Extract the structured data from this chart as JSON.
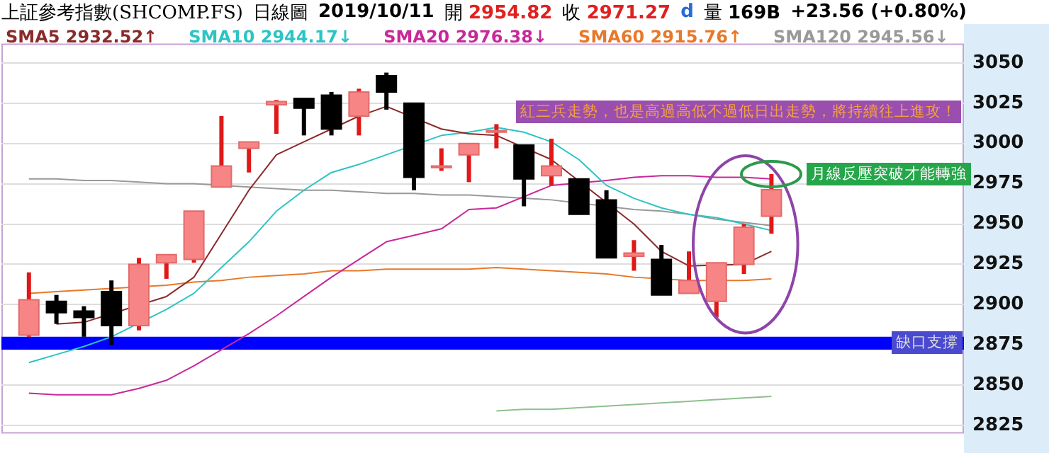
{
  "chart_data": {
    "type": "candlestick",
    "title": "上証參考指數(SHCOMP.FS)",
    "subtitle": "日線圖",
    "annotations": [
      "2019/10/11",
      "開 2954.82",
      "收 2971.27",
      "d",
      "量 169B",
      "+23.56 (+0.80%)",
      "紅三兵走勢，也是高過高低不過低日出走勢，將持續往上進攻！",
      "月線反壓突破才能轉強"
    ],
    "categories": [
      null,
      null,
      null,
      null,
      null,
      null,
      null,
      null,
      null,
      null,
      null,
      null,
      null,
      null,
      null,
      null,
      null,
      null,
      null,
      null,
      null,
      null,
      null,
      null,
      null,
      null,
      null,
      null
    ],
    "ohlc": [
      [
        2881,
        2920,
        2880,
        2903
      ],
      [
        2902,
        2906,
        2888,
        2895
      ],
      [
        2896,
        2899,
        2880,
        2892
      ],
      [
        2908,
        2915,
        2875,
        2887
      ],
      [
        2887,
        2929,
        2884,
        2925
      ],
      [
        2926,
        2931,
        2916,
        2931
      ],
      [
        2928,
        2958,
        2926,
        2958
      ],
      [
        2973,
        3017,
        2973,
        2986
      ],
      [
        2997,
        3001,
        2982,
        3001
      ],
      [
        3024,
        3027,
        3006,
        3026
      ],
      [
        3028,
        3028,
        3005,
        3022
      ],
      [
        3030,
        3032,
        3005,
        3009
      ],
      [
        3017,
        3034,
        3005,
        3032
      ],
      [
        3042,
        3044,
        3021,
        3032
      ],
      [
        3025,
        3025,
        2971,
        2979
      ],
      [
        2985,
        2997,
        2983,
        2986
      ],
      [
        2993,
        3000,
        2976,
        3000
      ],
      [
        3007,
        3012,
        2997,
        3008
      ],
      [
        2999,
        2999,
        2961,
        2978
      ],
      [
        2980,
        3003,
        2974,
        2986
      ],
      [
        2978,
        2978,
        2956,
        2956
      ],
      [
        2965,
        2971,
        2929,
        2929
      ],
      [
        2930,
        2940,
        2921,
        2932
      ],
      [
        2928,
        2937,
        2906,
        2906
      ],
      [
        2907,
        2933,
        2907,
        2915
      ],
      [
        2902,
        2926,
        2892,
        2926
      ],
      [
        2925,
        2950,
        2919,
        2948
      ],
      [
        2954.82,
        2981,
        2944,
        2971.27
      ]
    ],
    "series": [
      {
        "type": "line",
        "name": "SMA5 2932.52↑",
        "color": "#8b2a2a",
        "values": [
          null,
          2888,
          2889,
          null,
          null,
          2905,
          2917,
          2944,
          2971,
          2993,
          3001,
          3009,
          3017,
          3023,
          null,
          3009,
          3006,
          3005,
          null,
          2990,
          null,
          null,
          2950,
          2933,
          2924,
          null,
          2925,
          2933
        ]
      },
      {
        "type": "line",
        "name": "SMA10 2944.17↓",
        "color": "#2cc4c4",
        "values": [
          2864,
          2869,
          2874,
          2880,
          null,
          2897,
          2907,
          2923,
          2939,
          2958,
          2971,
          2982,
          2987,
          2993,
          null,
          3005,
          3007,
          3010,
          3007,
          3001,
          2990,
          2974,
          2966,
          2960,
          2956,
          2954,
          2950,
          2946
        ]
      },
      {
        "type": "line",
        "name": "SMA20 2976.38↓",
        "color": "#c8289a",
        "values": [
          2845,
          2844,
          2844,
          2844,
          2848,
          2853,
          2862,
          2872,
          2882,
          2893,
          2905,
          2917,
          2928,
          2939,
          2943,
          2947,
          2959,
          2960,
          2967,
          2974,
          null,
          2977,
          2979,
          2980,
          2980,
          2979,
          2979,
          2978
        ]
      },
      {
        "type": "line",
        "name": "SMA60 2915.76↑",
        "color": "#e8782a",
        "values": [
          2907,
          2908,
          2909,
          2910,
          null,
          2912,
          2914,
          2915,
          2917,
          2918,
          2919,
          2921,
          2921,
          2922,
          2922,
          2922,
          2922,
          2923,
          2922,
          2921,
          2920,
          2919,
          2917,
          null,
          2915,
          null,
          2915,
          2916
        ]
      },
      {
        "type": "line",
        "name": "SMA120 2945.56↓",
        "color": "#999999",
        "values": [
          2978,
          2978,
          2977,
          2977,
          2976,
          2975,
          2975,
          null,
          2973,
          2972,
          2971,
          2971,
          2970,
          2969,
          2969,
          2968,
          2968,
          2967,
          2966,
          2965,
          null,
          null,
          2959,
          2958,
          2956,
          2953,
          2951,
          2949
        ]
      },
      {
        "type": "line",
        "color": "#8fbf8f",
        "values": [
          null,
          null,
          null,
          null,
          null,
          null,
          null,
          null,
          null,
          null,
          null,
          null,
          null,
          null,
          null,
          null,
          null,
          2834,
          2835,
          2835,
          2836,
          2837,
          2838,
          2839,
          2840,
          2841,
          2842,
          2843
        ]
      }
    ],
    "bands": [
      {
        "axis": "y",
        "from": 2872,
        "to": 2880,
        "label": "缺口支撐",
        "color": "#0000ff"
      }
    ],
    "ylim": [
      2820,
      3062
    ],
    "yticks": [
      2825,
      2850,
      2875,
      2900,
      2925,
      2950,
      2975,
      3000,
      3025,
      3050
    ],
    "grid": "y",
    "legend": "top",
    "tick_labels": "y"
  }
}
